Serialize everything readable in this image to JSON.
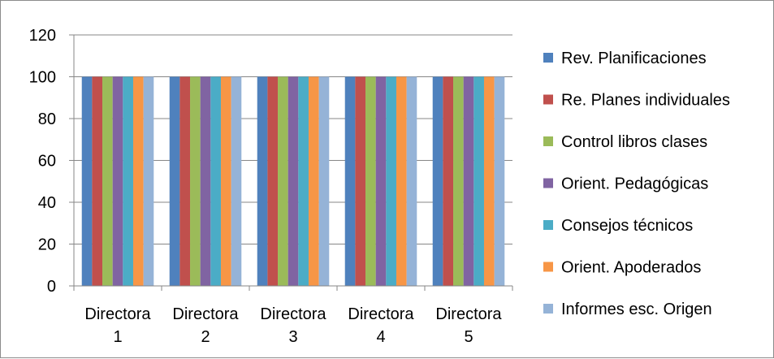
{
  "chart_data": {
    "type": "bar",
    "title": "",
    "xlabel": "",
    "ylabel": "",
    "categories": [
      [
        "Directora",
        "1"
      ],
      [
        "Directora",
        "2"
      ],
      [
        "Directora",
        "3"
      ],
      [
        "Directora",
        "4"
      ],
      [
        "Directora",
        "5"
      ]
    ],
    "ylim": [
      0,
      120
    ],
    "yticks": [
      0,
      20,
      40,
      60,
      80,
      100,
      120
    ],
    "grid": true,
    "legend_position": "right",
    "series": [
      {
        "name": "Rev. Planificaciones",
        "color": "#4F81BD",
        "values": [
          100,
          100,
          100,
          100,
          100
        ]
      },
      {
        "name": "Re. Planes individuales",
        "color": "#C0504D",
        "values": [
          100,
          100,
          100,
          100,
          100
        ]
      },
      {
        "name": "Control libros clases",
        "color": "#9BBB59",
        "values": [
          100,
          100,
          100,
          100,
          100
        ]
      },
      {
        "name": "Orient. Pedagógicas",
        "color": "#8064A2",
        "values": [
          100,
          100,
          100,
          100,
          100
        ]
      },
      {
        "name": "Consejos técnicos",
        "color": "#4BACC6",
        "values": [
          100,
          100,
          100,
          100,
          100
        ]
      },
      {
        "name": "Orient. Apoderados",
        "color": "#F79646",
        "values": [
          100,
          100,
          100,
          100,
          100
        ]
      },
      {
        "name": "Informes esc. Origen",
        "color": "#95B3D7",
        "values": [
          100,
          100,
          100,
          100,
          100
        ]
      }
    ]
  }
}
